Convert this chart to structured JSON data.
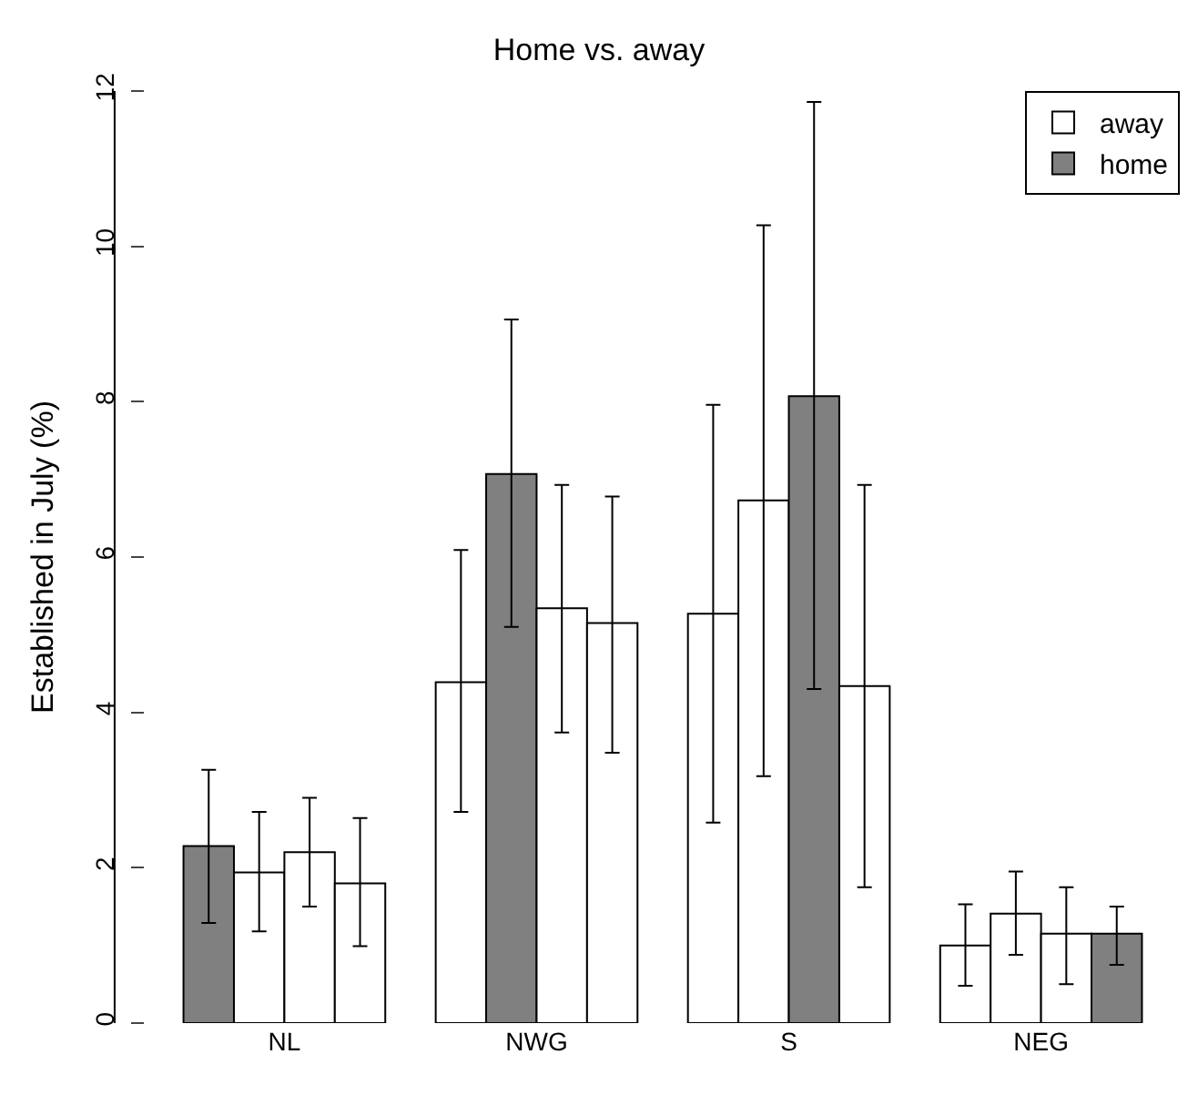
{
  "chart_data": {
    "type": "bar",
    "title": "Home vs. away",
    "ylabel": "Established in July (%)",
    "categories": [
      "NL",
      "NWG",
      "S",
      "NEG"
    ],
    "series": [
      {
        "color": "#ffffff",
        "colors": [
          "#808080",
          "#ffffff",
          "#ffffff",
          "#ffffff"
        ],
        "values": [
          2.28,
          4.39,
          5.27,
          1.0
        ],
        "errors": [
          [
            1.29,
            3.26
          ],
          [
            2.72,
            6.09
          ],
          [
            2.58,
            7.96
          ],
          [
            0.48,
            1.53
          ]
        ]
      },
      {
        "color": "#ffffff",
        "colors": [
          "#ffffff",
          "#808080",
          "#ffffff",
          "#ffffff"
        ],
        "values": [
          1.94,
          7.07,
          6.73,
          1.41
        ],
        "errors": [
          [
            1.18,
            2.72
          ],
          [
            5.1,
            9.06
          ],
          [
            3.18,
            10.27
          ],
          [
            0.88,
            1.95
          ]
        ]
      },
      {
        "color": "#ffffff",
        "colors": [
          "#ffffff",
          "#ffffff",
          "#808080",
          "#ffffff"
        ],
        "values": [
          2.2,
          5.34,
          8.07,
          1.15
        ],
        "errors": [
          [
            1.5,
            2.9
          ],
          [
            3.74,
            6.93
          ],
          [
            4.3,
            11.86
          ],
          [
            0.5,
            1.75
          ]
        ]
      },
      {
        "color": "#ffffff",
        "colors": [
          "#ffffff",
          "#ffffff",
          "#ffffff",
          "#808080"
        ],
        "values": [
          1.8,
          5.15,
          4.34,
          1.15
        ],
        "errors": [
          [
            0.99,
            2.64
          ],
          [
            3.48,
            6.78
          ],
          [
            1.75,
            6.93
          ],
          [
            0.75,
            1.5
          ]
        ]
      },
      {
        "name": "away",
        "color": "#ffffff",
        "values": [
          null,
          null,
          null,
          null
        ]
      },
      {
        "name": "home",
        "color": "#808080",
        "values": [
          null,
          null,
          null,
          null
        ]
      }
    ],
    "ylim": [
      0,
      12
    ],
    "yticks": [
      0,
      2,
      4,
      6,
      8,
      10,
      12
    ],
    "legend": "top right"
  }
}
